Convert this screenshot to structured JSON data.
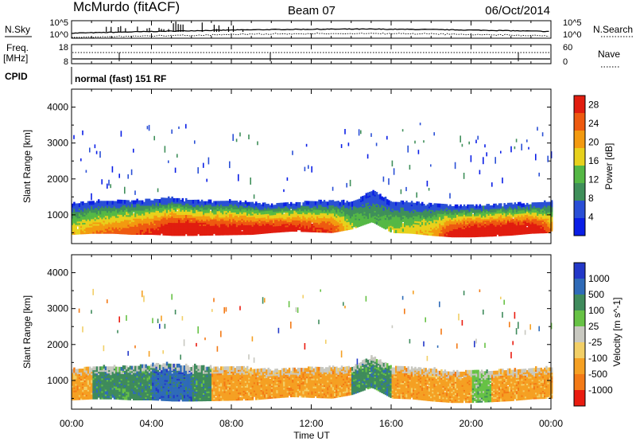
{
  "header": {
    "station": "McMurdo (fitACF)",
    "beam": "Beam 07",
    "date": "06/Oct/2014"
  },
  "summary_panels": {
    "nsky_label": "N.Sky",
    "nsearch_label": "N.Search",
    "noise_ticks": [
      "10^5",
      "10^0"
    ],
    "freq_label": "Freq.",
    "freq_unit": "[MHz]",
    "freq_ticks": [
      "18",
      "8"
    ],
    "nave_label": "Nave",
    "nave_ticks": [
      "60",
      "0"
    ],
    "cpid_label": "CPID",
    "cpid_value": "normal (fast) 151 RF"
  },
  "time_axis": {
    "label": "Time UT",
    "ticks": [
      "00:00",
      "04:00",
      "08:00",
      "12:00",
      "16:00",
      "20:00",
      "00:00"
    ]
  },
  "colors": {
    "power_scale": [
      "#0a1ee6",
      "#2a4fd6",
      "#3f8f5a",
      "#55b845",
      "#e8d11c",
      "#f39a10",
      "#ee5a10",
      "#e11d0f"
    ],
    "velocity_scale": [
      "#2338c8",
      "#2f6bb8",
      "#3f8b5c",
      "#67c245",
      "#c8c8c0",
      "#f2cf66",
      "#f5a023",
      "#f37a16",
      "#ea1c10"
    ]
  },
  "chart_data": [
    {
      "type": "heatmap",
      "title": "",
      "xlabel": "Time UT",
      "ylabel": "Slant Range [km]",
      "xlim": [
        "00:00",
        "24:00"
      ],
      "ylim": [
        200,
        4500
      ],
      "yticks": [
        1000,
        2000,
        3000,
        4000
      ],
      "colorbar": {
        "label": "Power [dB]",
        "ticks": [
          4,
          8,
          12,
          16,
          20,
          24,
          28
        ],
        "range": [
          0,
          30
        ]
      },
      "profile": {
        "hours": [
          0,
          1,
          2,
          3,
          4,
          5,
          6,
          7,
          8,
          9,
          10,
          11,
          12,
          13,
          14,
          15,
          16,
          17,
          18,
          19,
          20,
          21,
          22,
          23,
          24
        ],
        "echo_bottom_km": [
          450,
          480,
          480,
          450,
          450,
          420,
          420,
          430,
          440,
          450,
          500,
          540,
          520,
          500,
          600,
          800,
          500,
          480,
          420,
          380,
          380,
          400,
          430,
          480,
          500
        ],
        "echo_top_km": [
          1250,
          1300,
          1320,
          1330,
          1380,
          1400,
          1350,
          1300,
          1320,
          1280,
          1230,
          1260,
          1300,
          1320,
          1300,
          1600,
          1300,
          1300,
          1250,
          1200,
          1200,
          1220,
          1240,
          1260,
          1300
        ],
        "peak_power_db": [
          14,
          18,
          20,
          22,
          24,
          30,
          30,
          28,
          28,
          28,
          27,
          26,
          24,
          23,
          12,
          8,
          12,
          14,
          16,
          26,
          30,
          30,
          30,
          30,
          20
        ]
      }
    },
    {
      "type": "heatmap",
      "title": "",
      "xlabel": "Time UT",
      "ylabel": "Slant Range [km]",
      "xlim": [
        "00:00",
        "24:00"
      ],
      "ylim": [
        200,
        4500
      ],
      "yticks": [
        1000,
        2000,
        3000,
        4000
      ],
      "colorbar": {
        "label": "Velocity [m s^-1]",
        "ticks": [
          "1000",
          "500",
          "100",
          "25",
          "-25",
          "-100",
          "-500",
          "-1000"
        ]
      },
      "profile": {
        "hours": [
          0,
          1,
          2,
          3,
          4,
          5,
          6,
          7,
          8,
          9,
          10,
          11,
          12,
          13,
          14,
          15,
          16,
          17,
          18,
          19,
          20,
          21,
          22,
          23,
          24
        ],
        "echo_bottom_km": [
          450,
          480,
          480,
          450,
          450,
          420,
          420,
          430,
          440,
          450,
          500,
          540,
          520,
          500,
          600,
          800,
          500,
          480,
          420,
          380,
          380,
          400,
          430,
          480,
          500
        ],
        "echo_top_km": [
          1250,
          1300,
          1320,
          1330,
          1380,
          1400,
          1350,
          1300,
          1320,
          1280,
          1230,
          1260,
          1300,
          1320,
          1300,
          1600,
          1300,
          1300,
          1250,
          1200,
          1200,
          1220,
          1240,
          1260,
          1300
        ],
        "dominant_velocity_class": [
          "-100",
          "100",
          "100",
          "100",
          "500",
          "500",
          "100",
          "-100",
          "-100",
          "-100",
          "-100",
          "-100",
          "-100",
          "-100",
          "100",
          "100",
          "-100",
          "-100",
          "-100",
          "-100",
          "25",
          "-100",
          "-100",
          "-100",
          "-100"
        ]
      }
    }
  ]
}
